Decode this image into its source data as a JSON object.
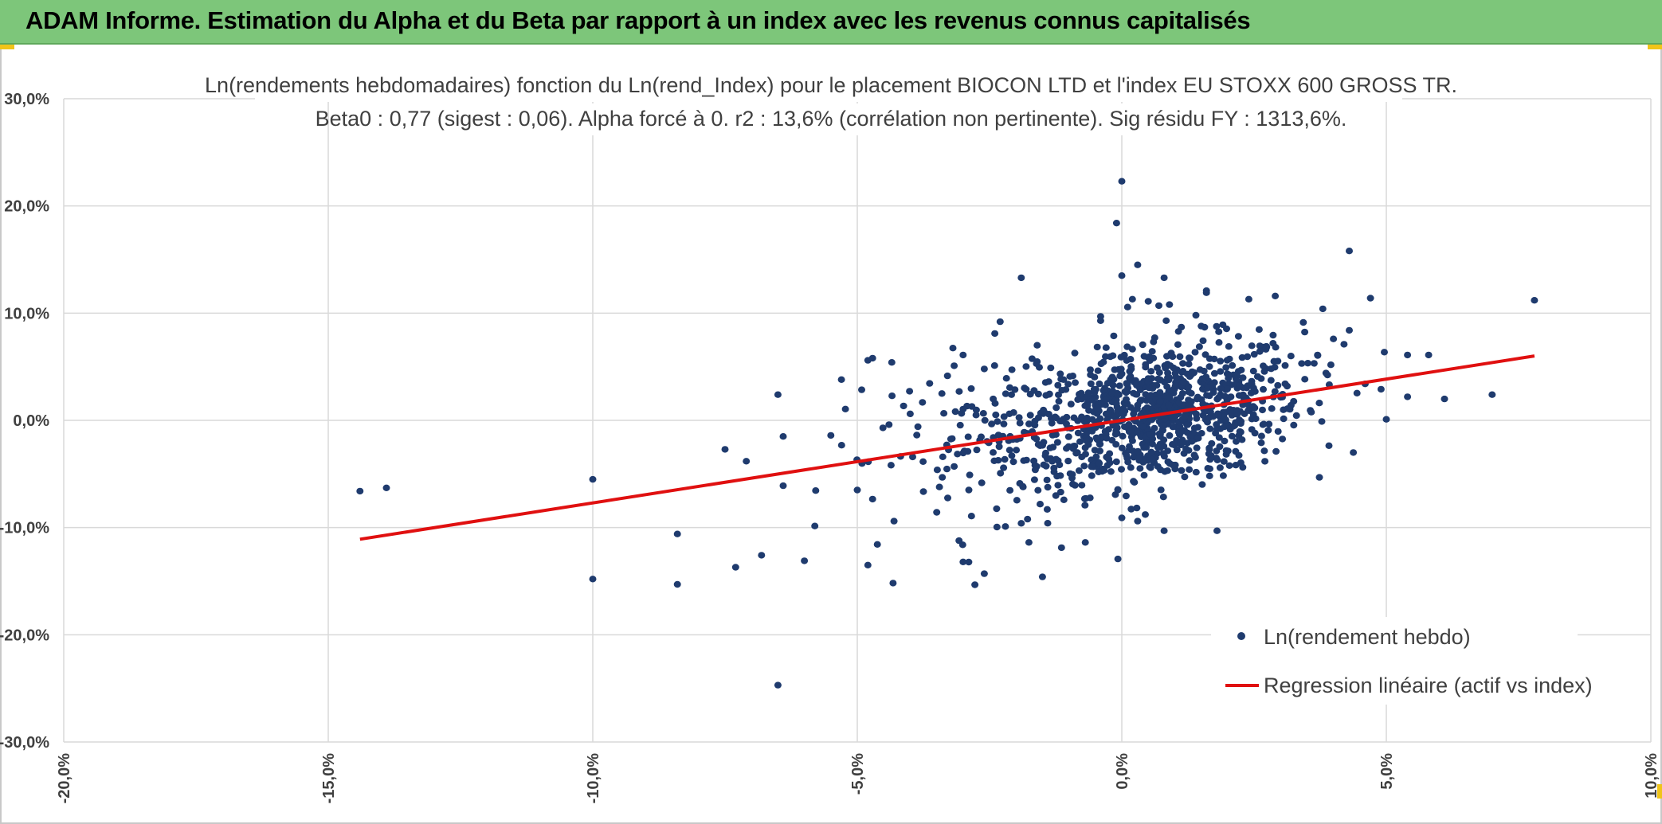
{
  "header": {
    "title": "ADAM Informe. Estimation du Alpha et du Beta par rapport à un index avec les revenus connus capitalisés"
  },
  "colors": {
    "banner": "#7dc67a",
    "points": "#1f3b6e",
    "regression": "#e01010",
    "grid": "#d9d9d9",
    "text": "#404040"
  },
  "chart_data": {
    "type": "scatter",
    "title_line1": "Ln(rendements hebdomadaires) fonction du Ln(rend_Index) pour le placement BIOCON LTD et l'index EU STOXX 600 GROSS TR.",
    "title_line2": "Beta0 : 0,77 (sigest : 0,06). Alpha forcé à 0. r2 : 13,6% (corrélation non pertinente). Sig résidu FY : 1313,6%.",
    "xlim": [
      -20,
      10
    ],
    "ylim": [
      -30,
      30
    ],
    "x_ticks": [
      -20,
      -15,
      -10,
      -5,
      0,
      5,
      10
    ],
    "y_ticks": [
      -30,
      -20,
      -10,
      0,
      10,
      20,
      30
    ],
    "x_tick_labels": [
      "-20,0%",
      "-15,0%",
      "-10,0%",
      "-5,0%",
      "0,0%",
      "5,0%",
      "10,0%"
    ],
    "y_tick_labels": [
      "-30,0%",
      "-20,0%",
      "-10,0%",
      "0,0%",
      "10,0%",
      "20,0%",
      "30,0%"
    ],
    "grid": true,
    "legend": {
      "position": "bottom-right",
      "points_label": "Ln(rendement hebdo)",
      "line_label": "Regression linéaire (actif vs index)"
    },
    "regression": {
      "beta": 0.77,
      "alpha": 0,
      "x_range": [
        -14.4,
        7.8
      ]
    },
    "outliers": [
      [
        -14.4,
        -6.6
      ],
      [
        -13.9,
        -6.3
      ],
      [
        -10.0,
        -5.5
      ],
      [
        -10.0,
        -14.8
      ],
      [
        -8.4,
        -10.6
      ],
      [
        -8.4,
        -15.3
      ],
      [
        -7.5,
        -2.7
      ],
      [
        -7.3,
        -13.7
      ],
      [
        -6.5,
        2.4
      ],
      [
        -6.4,
        -1.5
      ],
      [
        -6.4,
        -6.1
      ],
      [
        -6.0,
        -13.1
      ],
      [
        -6.5,
        -24.7
      ],
      [
        -5.3,
        3.8
      ],
      [
        -5.0,
        -6.5
      ],
      [
        -5.5,
        -1.4
      ],
      [
        -4.8,
        5.6
      ],
      [
        -4.8,
        -13.5
      ],
      [
        -4.4,
        -0.4
      ],
      [
        -3.4,
        2.5
      ],
      [
        -3.0,
        6.1
      ],
      [
        -3.0,
        -13.2
      ],
      [
        -2.6,
        -14.3
      ],
      [
        -2.6,
        4.8
      ],
      [
        -2.4,
        8.1
      ],
      [
        -2.3,
        9.2
      ],
      [
        -1.9,
        13.3
      ],
      [
        -1.6,
        7.0
      ],
      [
        -2.2,
        -9.9
      ],
      [
        -1.5,
        -14.6
      ],
      [
        -1.9,
        -9.6
      ],
      [
        0.0,
        22.3
      ],
      [
        -0.1,
        18.4
      ],
      [
        0.3,
        14.5
      ],
      [
        0.0,
        13.5
      ],
      [
        0.2,
        11.3
      ],
      [
        0.8,
        13.3
      ],
      [
        0.5,
        11.1
      ],
      [
        0.7,
        10.7
      ],
      [
        0.9,
        10.8
      ],
      [
        1.6,
        12.1
      ],
      [
        1.6,
        11.9
      ],
      [
        1.4,
        9.8
      ],
      [
        -0.4,
        9.7
      ],
      [
        -0.4,
        9.3
      ],
      [
        0.8,
        -10.3
      ],
      [
        0.3,
        -9.4
      ],
      [
        0.0,
        -9.1
      ],
      [
        1.8,
        -10.3
      ],
      [
        2.4,
        11.3
      ],
      [
        2.9,
        11.6
      ],
      [
        3.8,
        10.4
      ],
      [
        4.3,
        15.8
      ],
      [
        4.3,
        8.4
      ],
      [
        4.7,
        11.4
      ],
      [
        5.4,
        6.1
      ],
      [
        5.8,
        6.1
      ],
      [
        5.4,
        2.2
      ],
      [
        6.1,
        2.0
      ],
      [
        7.0,
        2.4
      ],
      [
        7.8,
        11.2
      ],
      [
        5.0,
        0.1
      ],
      [
        4.6,
        3.4
      ],
      [
        4.9,
        2.9
      ],
      [
        4.0,
        7.6
      ],
      [
        4.2,
        7.1
      ],
      [
        3.7,
        6.1
      ],
      [
        3.4,
        5.3
      ]
    ]
  }
}
